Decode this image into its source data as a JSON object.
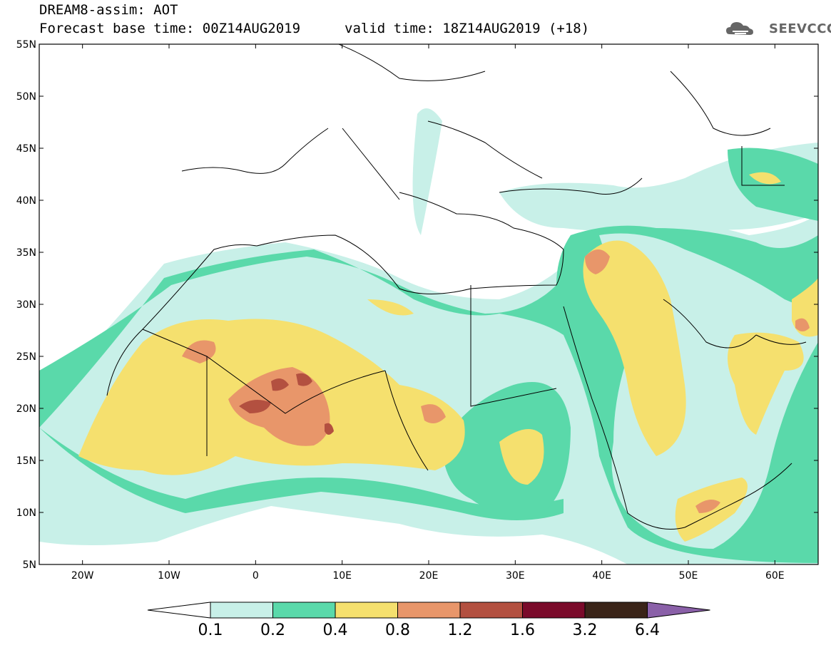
{
  "header": {
    "title": "DREAM8-assim: AOT",
    "base_time": "Forecast base time: 00Z14AUG2019",
    "valid_time": "valid time: 18Z14AUG2019 (+18)"
  },
  "logo": {
    "text": "SEEVCCC",
    "icon": "cloud-icon"
  },
  "map": {
    "lon_ticks": [
      "20W",
      "10W",
      "0",
      "10E",
      "20E",
      "30E",
      "40E",
      "50E",
      "60E"
    ],
    "lat_ticks": [
      "5N",
      "10N",
      "15N",
      "20N",
      "25N",
      "30N",
      "35N",
      "40N",
      "45N",
      "50N",
      "55N"
    ],
    "extent": {
      "lon": [
        -25,
        65
      ],
      "lat": [
        5,
        55
      ]
    }
  },
  "colorbar": {
    "labels": [
      "0.1",
      "0.2",
      "0.4",
      "0.8",
      "1.2",
      "1.6",
      "3.2",
      "6.4"
    ],
    "colors": [
      "#ffffff",
      "#c8f0e8",
      "#5ad9aa",
      "#f5e06e",
      "#e8966a",
      "#b35040",
      "#7a0a2a",
      "#3a2418",
      "#8a60a8"
    ]
  }
}
